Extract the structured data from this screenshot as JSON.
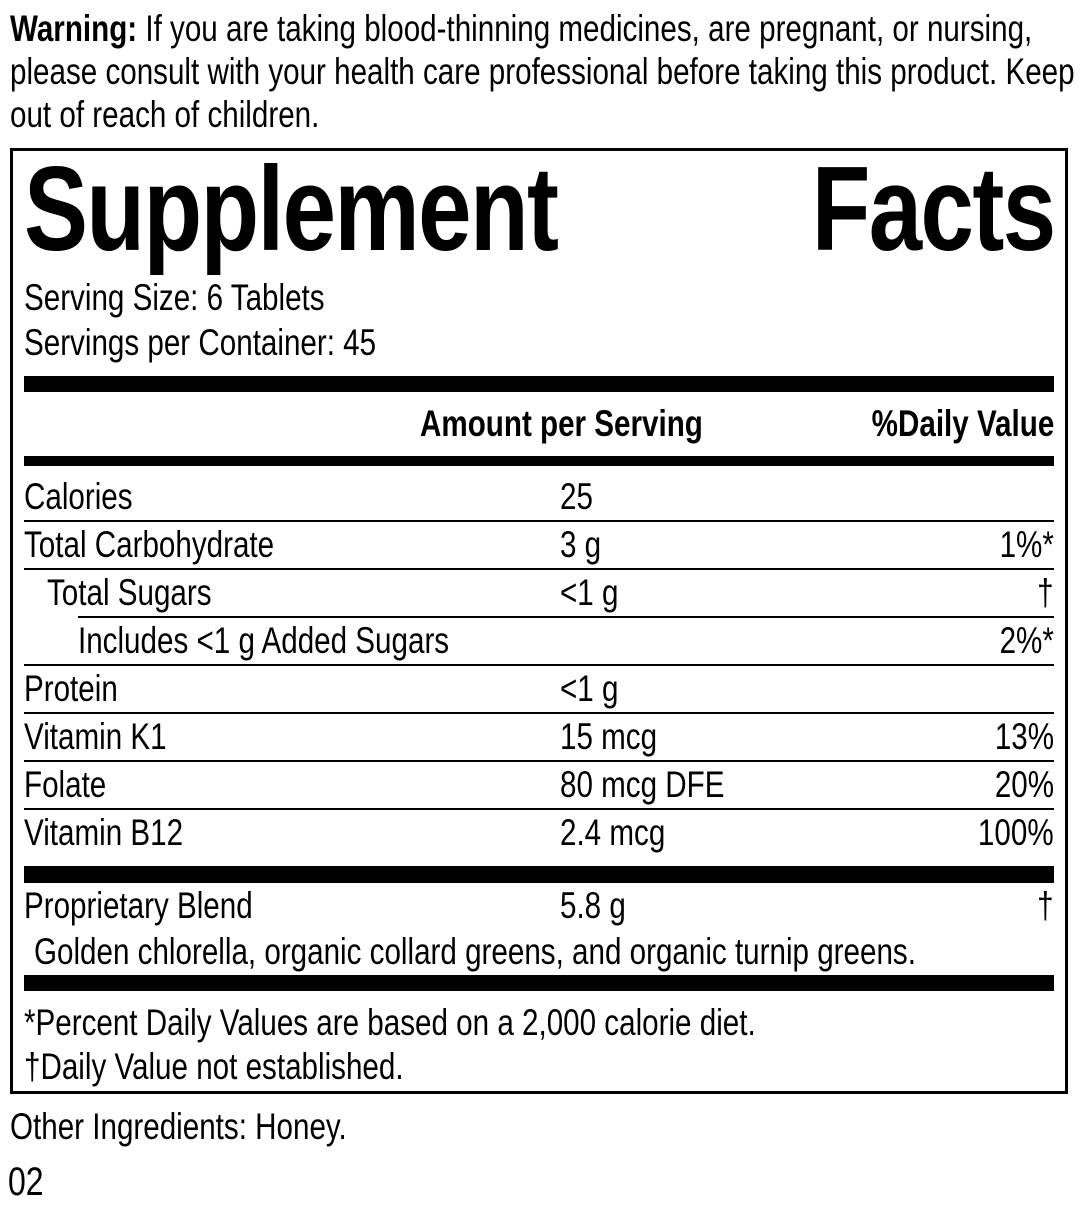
{
  "colors": {
    "text": "#000000",
    "background": "#ffffff"
  },
  "warning": {
    "label": "Warning:",
    "text": " If you are taking blood-thinning medicines, are pregnant, or nursing, please consult with your health care professional before taking this product. Keep out of reach of children."
  },
  "panel": {
    "title_left": "Supplement",
    "title_right": "Facts",
    "serving_size": "Serving Size: 6 Tablets",
    "servings_per_container": "Servings per Container: 45",
    "columns": {
      "amount": "Amount per Serving",
      "daily_value": "%Daily Value"
    },
    "rows": [
      {
        "name": "Calories",
        "amount": "25",
        "dv": ""
      },
      {
        "name": "Total Carbohydrate",
        "amount": "3 g",
        "dv": "1%*"
      },
      {
        "name": "Total Sugars",
        "amount": "<1 g",
        "dv": "†"
      },
      {
        "name": "Includes <1 g Added Sugars",
        "amount": "",
        "dv": "2%*"
      },
      {
        "name": "Protein",
        "amount": "<1 g",
        "dv": ""
      },
      {
        "name": "Vitamin K1",
        "amount": "15 mcg",
        "dv": "13%"
      },
      {
        "name": "Folate",
        "amount": "80 mcg DFE",
        "dv": "20%"
      },
      {
        "name": "Vitamin B12",
        "amount": "2.4 mcg",
        "dv": "100%"
      }
    ],
    "blend": {
      "name": "Proprietary Blend",
      "amount": "5.8 g",
      "dv": "†",
      "description": "Golden chlorella, organic collard greens, and organic turnip greens."
    },
    "footnotes": [
      "*Percent Daily Values are based on a 2,000 calorie diet.",
      "†Daily Value not established."
    ]
  },
  "other_ingredients": "Other Ingredients: Honey.",
  "page_number": "02"
}
